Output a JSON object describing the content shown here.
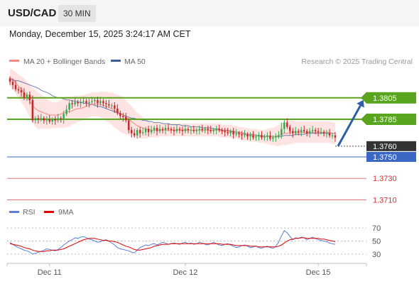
{
  "header": {
    "symbol": "USD/CAD",
    "timeframe": "30 MIN",
    "datetime": "Monday, December 15, 2025 3:24:17 AM CET"
  },
  "colors": {
    "ma20": "#f28b82",
    "ma50": "#3d5a99",
    "bollinger_fill": "#fde3e1",
    "resistance": "#5aa51e",
    "support": "#3a66c4",
    "support_weak": "#e57373",
    "price_tag": "#333333",
    "arrow": "#2e5ea5",
    "rsi": "#5b7fd4",
    "rsi_ma": "#e00000",
    "candle_up": "#33a853",
    "candle_down": "#c62828"
  },
  "chart_data": [
    {
      "type": "candlestick",
      "legend": [
        {
          "name": "MA 20 + Bollinger Bands",
          "color": "#f28b82"
        },
        {
          "name": "MA 50",
          "color": "#3d5a99"
        }
      ],
      "credit": "Research © 2025 Trading Central",
      "x_ticks": [
        {
          "label": "Dec 11",
          "index": 14
        },
        {
          "label": "Dec 12",
          "index": 62
        },
        {
          "label": "Dec 15",
          "index": 109
        }
      ],
      "ylim": [
        1.3705,
        1.383
      ],
      "levels": [
        {
          "value": 1.3805,
          "label": "1.3805",
          "kind": "resistance"
        },
        {
          "value": 1.3785,
          "label": "1.3785",
          "kind": "resistance"
        },
        {
          "value": 1.376,
          "label": "1.3760",
          "kind": "price"
        },
        {
          "value": 1.375,
          "label": "1.3750",
          "kind": "support"
        },
        {
          "value": 1.373,
          "label": "1.3730",
          "kind": "support_weak"
        },
        {
          "value": 1.371,
          "label": "1.3710",
          "kind": "support_weak"
        }
      ],
      "forecast_arrow": {
        "from": [
          116,
          1.376
        ],
        "to": [
          125,
          1.3803
        ]
      },
      "close_series": [
        1.382,
        1.3817,
        1.3813,
        1.3812,
        1.381,
        1.3805,
        1.3808,
        1.3803,
        1.3784,
        1.3786,
        1.3785,
        1.3786,
        1.3784,
        1.3785,
        1.3783,
        1.3785,
        1.3784,
        1.3786,
        1.3785,
        1.379,
        1.3794,
        1.38,
        1.3799,
        1.3801,
        1.38,
        1.3801,
        1.3802,
        1.38,
        1.3801,
        1.3802,
        1.3803,
        1.38,
        1.3802,
        1.38,
        1.3799,
        1.3798,
        1.3798,
        1.3795,
        1.3791,
        1.3788,
        1.3787,
        1.3784,
        1.3775,
        1.3772,
        1.377,
        1.3775,
        1.3772,
        1.3773,
        1.3776,
        1.3773,
        1.3775,
        1.3777,
        1.3774,
        1.3776,
        1.3775,
        1.3777,
        1.3776,
        1.3775,
        1.3774,
        1.3776,
        1.3775,
        1.3774,
        1.3776,
        1.3775,
        1.3775,
        1.3774,
        1.3775,
        1.3776,
        1.3775,
        1.3776,
        1.3775,
        1.3774,
        1.3775,
        1.3776,
        1.3775,
        1.3774,
        1.3773,
        1.3772,
        1.3774,
        1.3771,
        1.3772,
        1.3771,
        1.377,
        1.3771,
        1.3769,
        1.377,
        1.3768,
        1.3769,
        1.377,
        1.3768,
        1.3769,
        1.377,
        1.3767,
        1.3768,
        1.3769,
        1.377,
        1.3776,
        1.3782,
        1.3778,
        1.3774,
        1.3772,
        1.3774,
        1.3773,
        1.3775,
        1.3774,
        1.3772,
        1.3774,
        1.3775,
        1.3774,
        1.3773,
        1.3773,
        1.3772,
        1.3772,
        1.377,
        1.377,
        1.3768
      ],
      "ma20": [
        1.3824,
        1.3822,
        1.3819,
        1.3816,
        1.3813,
        1.381,
        1.3806,
        1.3802,
        1.3798,
        1.3795,
        1.3793,
        1.3792,
        1.3791,
        1.379,
        1.3789,
        1.3789,
        1.3789,
        1.3789,
        1.379,
        1.3791,
        1.3792,
        1.3792,
        1.3793,
        1.3794,
        1.3795,
        1.3795,
        1.3796,
        1.3797,
        1.3798,
        1.3799,
        1.3799,
        1.3799,
        1.3799,
        1.3798,
        1.3797,
        1.3796,
        1.3795,
        1.3793,
        1.3792,
        1.379,
        1.3789,
        1.3787,
        1.3785,
        1.3783,
        1.3781,
        1.3779,
        1.3778,
        1.3777,
        1.3776,
        1.3776,
        1.3775,
        1.3775,
        1.3775,
        1.3775,
        1.3775,
        1.3775,
        1.3775,
        1.3775,
        1.3775,
        1.3775,
        1.3775,
        1.3775,
        1.3775,
        1.3775,
        1.3775,
        1.3775,
        1.3775,
        1.3775,
        1.3775,
        1.3775,
        1.3775,
        1.3775,
        1.3775,
        1.3775,
        1.3775,
        1.3774,
        1.3774,
        1.3774,
        1.3774,
        1.3773,
        1.3773,
        1.3772,
        1.3772,
        1.3771,
        1.3771,
        1.377,
        1.377,
        1.377,
        1.3769,
        1.3769,
        1.3769,
        1.3769,
        1.3769,
        1.3769,
        1.3769,
        1.377,
        1.3771,
        1.3772,
        1.3772,
        1.3773,
        1.3773,
        1.3773,
        1.3773,
        1.3773,
        1.3773,
        1.3773,
        1.3773,
        1.3773,
        1.3773,
        1.3773,
        1.3773,
        1.3773,
        1.3773,
        1.3773,
        1.3772,
        1.3772
      ],
      "ma50": [
        1.3822,
        1.3822,
        1.3821,
        1.3821,
        1.382,
        1.3819,
        1.3818,
        1.3817,
        1.3816,
        1.3815,
        1.3814,
        1.3812,
        1.3811,
        1.381,
        1.3809,
        1.3807,
        1.3806,
        1.3805,
        1.3805,
        1.3804,
        1.3803,
        1.3803,
        1.3802,
        1.3802,
        1.3801,
        1.3801,
        1.38,
        1.38,
        1.3799,
        1.3799,
        1.3798,
        1.3797,
        1.3797,
        1.3796,
        1.3795,
        1.3794,
        1.3793,
        1.3792,
        1.3791,
        1.379,
        1.3789,
        1.3788,
        1.3787,
        1.3786,
        1.3786,
        1.3785,
        1.3785,
        1.3784,
        1.3784,
        1.3783,
        1.3783,
        1.3782,
        1.3782,
        1.3782,
        1.3781,
        1.3781,
        1.3781,
        1.378,
        1.378,
        1.378,
        1.378,
        1.3779,
        1.3779,
        1.3779,
        1.3778,
        1.3778,
        1.3778,
        1.3778,
        1.3777,
        1.3777,
        1.3777,
        1.3777,
        1.3776,
        1.3776,
        1.3776,
        1.3775,
        1.3775,
        1.3775,
        1.3774,
        1.3774,
        1.3773,
        1.3773,
        1.3772,
        1.3772,
        1.3771,
        1.3771,
        1.3771,
        1.377,
        1.377,
        1.377,
        1.3769,
        1.3769,
        1.3769,
        1.3769,
        1.3769,
        1.3769,
        1.3769,
        1.377,
        1.377,
        1.377,
        1.377,
        1.3771,
        1.3771,
        1.3771,
        1.3771,
        1.3772,
        1.3772,
        1.3772,
        1.3772,
        1.3772,
        1.3772,
        1.3772,
        1.3772,
        1.3772,
        1.3772,
        1.3772
      ],
      "bb_half_width": [
        0.0008,
        0.0009,
        0.001,
        0.0011,
        0.0012,
        0.0013,
        0.0014,
        0.0015,
        0.0016,
        0.0017,
        0.0017,
        0.0016,
        0.0015,
        0.0014,
        0.0013,
        0.0012,
        0.0012,
        0.0012,
        0.0013,
        0.0014,
        0.0014,
        0.0014,
        0.0013,
        0.0013,
        0.0012,
        0.0012,
        0.0012,
        0.0011,
        0.0011,
        0.0011,
        0.0011,
        0.0011,
        0.0012,
        0.0013,
        0.0014,
        0.0014,
        0.0015,
        0.0016,
        0.0016,
        0.0017,
        0.0017,
        0.0016,
        0.0015,
        0.0014,
        0.0013,
        0.0012,
        0.0011,
        0.001,
        0.0009,
        0.0008,
        0.0007,
        0.0007,
        0.0007,
        0.0006,
        0.0006,
        0.0006,
        0.0006,
        0.0006,
        0.0006,
        0.0006,
        0.0006,
        0.0006,
        0.0006,
        0.0006,
        0.0006,
        0.0006,
        0.0006,
        0.0006,
        0.0006,
        0.0006,
        0.0006,
        0.0006,
        0.0006,
        0.0006,
        0.0006,
        0.0006,
        0.0006,
        0.0006,
        0.0006,
        0.0006,
        0.0006,
        0.0006,
        0.0006,
        0.0006,
        0.0006,
        0.0006,
        0.0006,
        0.0006,
        0.0006,
        0.0006,
        0.0006,
        0.0007,
        0.0008,
        0.0008,
        0.0009,
        0.001,
        0.001,
        0.0011,
        0.0011,
        0.0011,
        0.0011,
        0.001,
        0.001,
        0.001,
        0.001,
        0.001,
        0.001,
        0.001,
        0.001,
        0.001,
        0.001,
        0.001,
        0.001,
        0.001,
        0.001,
        0.001,
        0.001
      ]
    },
    {
      "type": "line",
      "legend": [
        {
          "name": "RSI",
          "color": "#5b7fd4"
        },
        {
          "name": "9MA",
          "color": "#e00000"
        }
      ],
      "ylim": [
        20,
        80
      ],
      "y_ticks": [
        30,
        50,
        70
      ],
      "rsi": [
        48,
        45,
        42,
        40,
        38,
        36,
        35,
        33,
        30,
        31,
        33,
        34,
        36,
        38,
        37,
        36,
        35,
        37,
        40,
        44,
        47,
        50,
        52,
        55,
        54,
        56,
        57,
        55,
        53,
        52,
        50,
        48,
        49,
        51,
        52,
        50,
        47,
        44,
        40,
        38,
        37,
        36,
        35,
        33,
        32,
        36,
        40,
        42,
        44,
        43,
        45,
        46,
        44,
        46,
        48,
        47,
        45,
        46,
        47,
        46,
        45,
        47,
        48,
        46,
        47,
        45,
        46,
        48,
        47,
        45,
        44,
        46,
        48,
        46,
        44,
        43,
        45,
        46,
        44,
        42,
        40,
        41,
        43,
        44,
        42,
        40,
        41,
        42,
        40,
        39,
        41,
        42,
        40,
        39,
        42,
        48,
        58,
        66,
        63,
        57,
        52,
        55,
        54,
        56,
        55,
        52,
        54,
        56,
        54,
        52,
        51,
        50,
        49,
        47,
        46,
        45
      ],
      "ma9": [
        46,
        45,
        44,
        43,
        42,
        40,
        39,
        38,
        36,
        35,
        34,
        34,
        34,
        35,
        35,
        36,
        36,
        36,
        37,
        38,
        40,
        42,
        44,
        46,
        48,
        50,
        52,
        53,
        54,
        54,
        54,
        53,
        52,
        51,
        51,
        50,
        50,
        49,
        48,
        46,
        44,
        42,
        41,
        39,
        37,
        36,
        36,
        37,
        38,
        39,
        40,
        42,
        43,
        44,
        45,
        45,
        45,
        46,
        46,
        46,
        46,
        46,
        46,
        46,
        46,
        46,
        46,
        46,
        46,
        46,
        46,
        46,
        46,
        46,
        46,
        45,
        45,
        45,
        45,
        44,
        43,
        43,
        43,
        43,
        43,
        42,
        42,
        42,
        41,
        41,
        41,
        41,
        41,
        41,
        41,
        42,
        44,
        47,
        50,
        52,
        53,
        54,
        54,
        55,
        55,
        54,
        54,
        54,
        54,
        54,
        53,
        53,
        52,
        51,
        50,
        49
      ]
    }
  ]
}
